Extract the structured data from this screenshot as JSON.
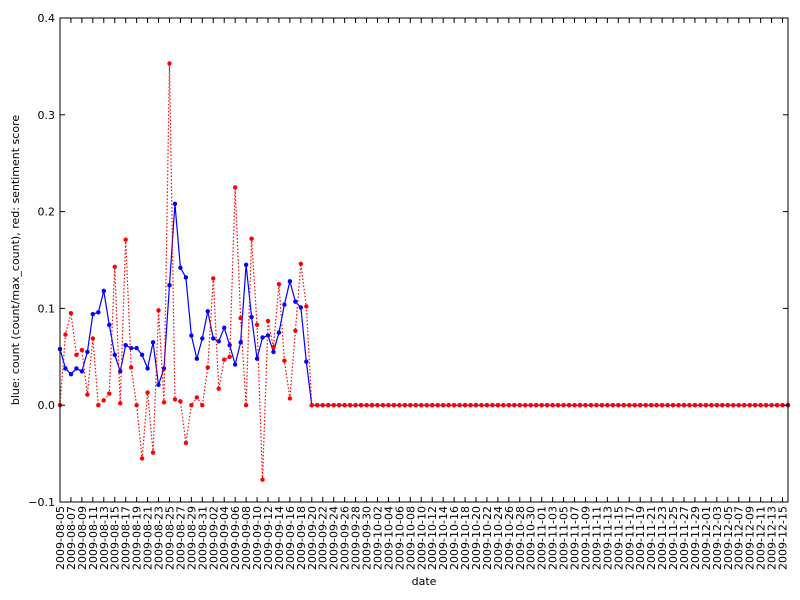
{
  "chart_data": {
    "type": "line",
    "title": "",
    "xlabel": "date",
    "ylabel": "blue: count (count/max_count), red: sentiment score",
    "ylim": [
      -0.1,
      0.4
    ],
    "y_ticks": [
      "−0.1",
      "0.0",
      "0.1",
      "0.2",
      "0.3",
      "0.4"
    ],
    "x_start": "2009-08-05",
    "x_end": "2009-12-16",
    "x_tick_labels": [
      "2009-08-05",
      "2009-08-07",
      "2009-08-09",
      "2009-08-11",
      "2009-08-13",
      "2009-08-15",
      "2009-08-17",
      "2009-08-19",
      "2009-08-21",
      "2009-08-23",
      "2009-08-25",
      "2009-08-27",
      "2009-08-29",
      "2009-08-31",
      "2009-09-02",
      "2009-09-04",
      "2009-09-06",
      "2009-09-08",
      "2009-09-10",
      "2009-09-12",
      "2009-09-14",
      "2009-09-16",
      "2009-09-18",
      "2009-09-20",
      "2009-09-22",
      "2009-09-24",
      "2009-09-26",
      "2009-09-28",
      "2009-09-30",
      "2009-10-02",
      "2009-10-04",
      "2009-10-06",
      "2009-10-08",
      "2009-10-10",
      "2009-10-12",
      "2009-10-14",
      "2009-10-16",
      "2009-10-18",
      "2009-10-20",
      "2009-10-22",
      "2009-10-24",
      "2009-10-26",
      "2009-10-28",
      "2009-10-30",
      "2009-11-01",
      "2009-11-03",
      "2009-11-05",
      "2009-11-07",
      "2009-11-09",
      "2009-11-11",
      "2009-11-13",
      "2009-11-15",
      "2009-11-17",
      "2009-11-19",
      "2009-11-21",
      "2009-11-23",
      "2009-11-25",
      "2009-11-27",
      "2009-11-29",
      "2009-12-01",
      "2009-12-03",
      "2009-12-05",
      "2009-12-07",
      "2009-12-09",
      "2009-12-11",
      "2009-12-13",
      "2009-12-15"
    ],
    "grid": false,
    "legend": "none",
    "series": [
      {
        "color": "#0000ff",
        "style": "solid",
        "zero_after_last": true,
        "values": [
          0.058,
          0.038,
          0.032,
          0.038,
          0.035,
          0.055,
          0.094,
          0.096,
          0.118,
          0.083,
          0.052,
          0.035,
          0.062,
          0.059,
          0.059,
          0.052,
          0.038,
          0.065,
          0.021,
          0.038,
          0.124,
          0.208,
          0.142,
          0.132,
          0.072,
          0.048,
          0.069,
          0.097,
          0.069,
          0.066,
          0.08,
          0.062,
          0.042,
          0.065,
          0.145,
          0.091,
          0.048,
          0.07,
          0.072,
          0.055,
          0.075,
          0.104,
          0.128,
          0.107,
          0.101,
          0.045,
          0.0
        ]
      },
      {
        "color": "#ff0000",
        "style": "dotted",
        "zero_after_last": true,
        "values": [
          0.0,
          0.073,
          0.095,
          0.052,
          0.057,
          0.011,
          0.069,
          0.0,
          0.005,
          0.012,
          0.143,
          0.002,
          0.171,
          0.039,
          0.0,
          -0.055,
          0.013,
          -0.049,
          0.098,
          0.003,
          0.353,
          0.006,
          0.004,
          -0.039,
          0.0,
          0.008,
          0.0,
          0.039,
          0.131,
          0.017,
          0.047,
          0.05,
          0.225,
          0.09,
          0.0,
          0.172,
          0.083,
          -0.077,
          0.087,
          0.06,
          0.125,
          0.046,
          0.007,
          0.077,
          0.146,
          0.102,
          0.0
        ]
      }
    ]
  }
}
